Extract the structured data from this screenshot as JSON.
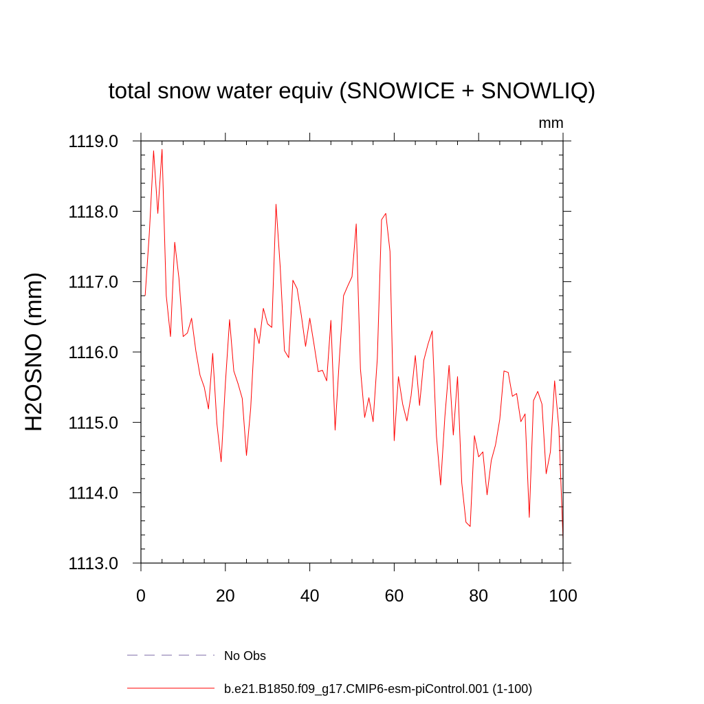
{
  "chart_data": {
    "type": "line",
    "title": "total snow water equiv (SNOWICE + SNOWLIQ)",
    "units": "mm",
    "ylabel": "H2OSNO  (mm)",
    "xlabel": "",
    "xlim": [
      0,
      100
    ],
    "ylim": [
      1113.0,
      1119.0
    ],
    "xticks": [
      0,
      20,
      40,
      60,
      80,
      100
    ],
    "yticks": [
      1113.0,
      1114.0,
      1115.0,
      1116.0,
      1117.0,
      1118.0,
      1119.0
    ],
    "xtick_labels": [
      "0",
      "20",
      "40",
      "60",
      "80",
      "100"
    ],
    "ytick_labels": [
      "1113.0",
      "1114.0",
      "1115.0",
      "1116.0",
      "1117.0",
      "1118.0",
      "1119.0"
    ],
    "legend": {
      "placement": "bottom",
      "entries": [
        {
          "label": "No Obs",
          "style": "dashed",
          "color": "#7b68a6"
        },
        {
          "label": "b.e21.B1850.f09_g17.CMIP6-esm-piControl.001 (1-100)",
          "style": "solid",
          "color": "#ff0000"
        }
      ]
    },
    "series": [
      {
        "name": "b.e21.B1850.f09_g17.CMIP6-esm-piControl.001 (1-100)",
        "color": "#ff0000",
        "x": [
          1,
          2,
          3,
          4,
          5,
          6,
          7,
          8,
          9,
          10,
          11,
          12,
          13,
          14,
          15,
          16,
          17,
          18,
          19,
          20,
          21,
          22,
          23,
          24,
          25,
          26,
          27,
          28,
          29,
          30,
          31,
          32,
          33,
          34,
          35,
          36,
          37,
          38,
          39,
          40,
          41,
          42,
          43,
          44,
          45,
          46,
          47,
          48,
          49,
          50,
          51,
          52,
          53,
          54,
          55,
          56,
          57,
          58,
          59,
          60,
          61,
          62,
          63,
          64,
          65,
          66,
          67,
          68,
          69,
          70,
          71,
          72,
          73,
          74,
          75,
          76,
          77,
          78,
          79,
          80,
          81,
          82,
          83,
          84,
          85,
          86,
          87,
          88,
          89,
          90,
          91,
          92,
          93,
          94,
          95,
          96,
          97,
          98,
          99,
          100
        ],
        "values": [
          1116.8,
          1117.7,
          1118.86,
          1117.97,
          1118.88,
          1116.8,
          1116.22,
          1117.56,
          1117.05,
          1116.22,
          1116.27,
          1116.48,
          1116.02,
          1115.67,
          1115.5,
          1115.19,
          1115.98,
          1114.98,
          1114.44,
          1115.55,
          1116.46,
          1115.73,
          1115.55,
          1115.34,
          1114.53,
          1115.2,
          1116.34,
          1116.12,
          1116.62,
          1116.4,
          1116.35,
          1118.1,
          1117.2,
          1116.02,
          1115.92,
          1117.02,
          1116.9,
          1116.52,
          1116.08,
          1116.48,
          1116.11,
          1115.72,
          1115.74,
          1115.59,
          1116.45,
          1114.89,
          1115.9,
          1116.8,
          1116.94,
          1117.07,
          1117.82,
          1115.76,
          1115.07,
          1115.35,
          1115.01,
          1115.91,
          1117.88,
          1117.97,
          1117.43,
          1114.74,
          1115.65,
          1115.26,
          1115.02,
          1115.38,
          1115.95,
          1115.24,
          1115.88,
          1116.11,
          1116.3,
          1114.81,
          1114.11,
          1115.08,
          1115.81,
          1114.82,
          1115.65,
          1114.14,
          1113.58,
          1113.52,
          1114.81,
          1114.51,
          1114.58,
          1113.97,
          1114.46,
          1114.68,
          1115.04,
          1115.73,
          1115.71,
          1115.37,
          1115.41,
          1115.01,
          1115.12,
          1113.65,
          1115.31,
          1115.44,
          1115.26,
          1114.27,
          1114.58,
          1115.59,
          1114.93,
          1113.33
        ]
      }
    ]
  }
}
